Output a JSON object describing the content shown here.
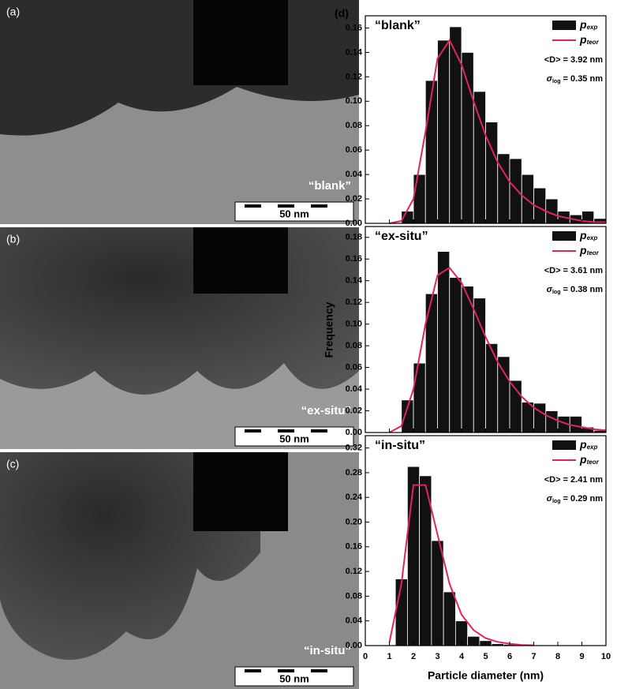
{
  "images": [
    {
      "label": "(a)",
      "caption": "“blank”",
      "scale": "50 nm"
    },
    {
      "label": "(b)",
      "caption": "“ex-situ”",
      "scale": "50 nm"
    },
    {
      "label": "(c)",
      "caption": "“in-situ”",
      "scale": "50 nm"
    }
  ],
  "panel_label": "(d)",
  "chart_data": [
    {
      "type": "histogram",
      "title": "“blank”",
      "ylabel": "Frequency",
      "bins": [
        1.5,
        2,
        2.5,
        3,
        3.5,
        4,
        4.5,
        5,
        5.5,
        6,
        6.5,
        7,
        7.5,
        8,
        8.5,
        9,
        9.5,
        10
      ],
      "series": [
        {
          "name": "p",
          "name_sub": "exp",
          "color": "#111111",
          "values": [
            0.01,
            0.04,
            0.117,
            0.15,
            0.161,
            0.14,
            0.108,
            0.083,
            0.057,
            0.053,
            0.04,
            0.029,
            0.02,
            0.01,
            0.007,
            0.01,
            0.004
          ]
        },
        {
          "name": "p",
          "name_sub": "teor",
          "color": "#e0245e",
          "x": [
            1,
            1.5,
            2,
            2.5,
            3,
            3.5,
            4,
            4.5,
            5,
            5.5,
            6,
            6.5,
            7,
            7.5,
            8,
            8.5,
            9,
            9.5,
            10
          ],
          "values": [
            0,
            0.002,
            0.02,
            0.075,
            0.135,
            0.15,
            0.13,
            0.1,
            0.072,
            0.05,
            0.034,
            0.023,
            0.015,
            0.01,
            0.006,
            0.004,
            0.002,
            0.001,
            0.001
          ]
        }
      ],
      "annotations": [
        {
          "main": "<D> = 3.92 nm"
        },
        {
          "main": "σ",
          "sub": "log",
          "rest": " = 0.35 nm"
        }
      ],
      "xlim": [
        0,
        10
      ],
      "xticks": [
        0,
        1,
        2,
        3,
        4,
        5,
        6,
        7,
        8,
        9,
        10
      ],
      "ylim": [
        0,
        0.17
      ],
      "yticks": [
        {
          "value": 0,
          "label": "0.00"
        },
        {
          "value": 0.02,
          "label": "0.02"
        },
        {
          "value": 0.04,
          "label": "0.04"
        },
        {
          "value": 0.06,
          "label": "0.06"
        },
        {
          "value": 0.08,
          "label": "0.08"
        },
        {
          "value": 0.1,
          "label": "0.10"
        },
        {
          "value": 0.12,
          "label": "0.12"
        },
        {
          "value": 0.14,
          "label": "0.14"
        },
        {
          "value": 0.16,
          "label": "0.16"
        }
      ]
    },
    {
      "type": "histogram",
      "title": "“ex-situ”",
      "bins": [
        1.5,
        2,
        2.5,
        3,
        3.5,
        4,
        4.5,
        5,
        5.5,
        6,
        6.5,
        7,
        7.5,
        8,
        8.5,
        9,
        9.5,
        10
      ],
      "series": [
        {
          "name": "p",
          "name_sub": "exp",
          "color": "#111111",
          "values": [
            0.03,
            0.064,
            0.128,
            0.167,
            0.143,
            0.135,
            0.124,
            0.082,
            0.07,
            0.048,
            0.028,
            0.027,
            0.02,
            0.015,
            0.015,
            0.005,
            0.002
          ]
        },
        {
          "name": "p",
          "name_sub": "teor",
          "color": "#e0245e",
          "x": [
            1,
            1.5,
            2,
            2.5,
            3,
            3.5,
            4,
            4.5,
            5,
            5.5,
            6,
            6.5,
            7,
            7.5,
            8,
            8.5,
            9,
            9.5,
            10
          ],
          "values": [
            0,
            0.006,
            0.04,
            0.1,
            0.145,
            0.152,
            0.138,
            0.114,
            0.088,
            0.065,
            0.047,
            0.033,
            0.023,
            0.016,
            0.011,
            0.007,
            0.005,
            0.003,
            0.002
          ]
        }
      ],
      "annotations": [
        {
          "main": "<D> = 3.61 nm"
        },
        {
          "main": "σ",
          "sub": "log",
          "rest": " = 0.38 nm"
        }
      ],
      "xlim": [
        0,
        10
      ],
      "xticks": [
        0,
        1,
        2,
        3,
        4,
        5,
        6,
        7,
        8,
        9,
        10
      ],
      "ylim": [
        0,
        0.19
      ],
      "yticks": [
        {
          "value": 0,
          "label": "0.00"
        },
        {
          "value": 0.02,
          "label": "0.02"
        },
        {
          "value": 0.04,
          "label": "0.04"
        },
        {
          "value": 0.06,
          "label": "0.06"
        },
        {
          "value": 0.08,
          "label": "0.08"
        },
        {
          "value": 0.1,
          "label": "0.10"
        },
        {
          "value": 0.12,
          "label": "0.12"
        },
        {
          "value": 0.14,
          "label": "0.14"
        },
        {
          "value": 0.16,
          "label": "0.16"
        },
        {
          "value": 0.18,
          "label": "0.18"
        }
      ]
    },
    {
      "type": "histogram",
      "title": "“in-situ”",
      "xlabel": "Particle diameter (nm)",
      "bins": [
        1.25,
        1.75,
        2.25,
        2.75,
        3.25,
        3.75,
        4.25,
        4.75,
        5.25,
        5.75,
        6.25
      ],
      "series": [
        {
          "name": "p",
          "name_sub": "exp",
          "color": "#111111",
          "values": [
            0.108,
            0.29,
            0.275,
            0.17,
            0.087,
            0.04,
            0.015,
            0.008,
            0.003,
            0.002
          ]
        },
        {
          "name": "p",
          "name_sub": "teor",
          "color": "#e0245e",
          "x": [
            1,
            1.5,
            2,
            2.5,
            3,
            3.5,
            4,
            4.5,
            5,
            5.5,
            6,
            6.5,
            7
          ],
          "values": [
            0.005,
            0.1,
            0.26,
            0.26,
            0.18,
            0.1,
            0.05,
            0.025,
            0.012,
            0.006,
            0.003,
            0.001,
            0.0005
          ]
        }
      ],
      "annotations": [
        {
          "main": "<D> = 2.41 nm"
        },
        {
          "main": "σ",
          "sub": "log",
          "rest": " = 0.29 nm"
        }
      ],
      "xlim": [
        0,
        10
      ],
      "xticks": [
        0,
        1,
        2,
        3,
        4,
        5,
        6,
        7,
        8,
        9,
        10
      ],
      "ylim": [
        0,
        0.34
      ],
      "yticks": [
        {
          "value": 0,
          "label": "0.00"
        },
        {
          "value": 0.04,
          "label": "0.04"
        },
        {
          "value": 0.08,
          "label": "0.08"
        },
        {
          "value": 0.12,
          "label": "0.12"
        },
        {
          "value": 0.16,
          "label": "0.16"
        },
        {
          "value": 0.2,
          "label": "0.20"
        },
        {
          "value": 0.24,
          "label": "0.24"
        },
        {
          "value": 0.28,
          "label": "0.28"
        },
        {
          "value": 0.32,
          "label": "0.32"
        }
      ]
    }
  ]
}
